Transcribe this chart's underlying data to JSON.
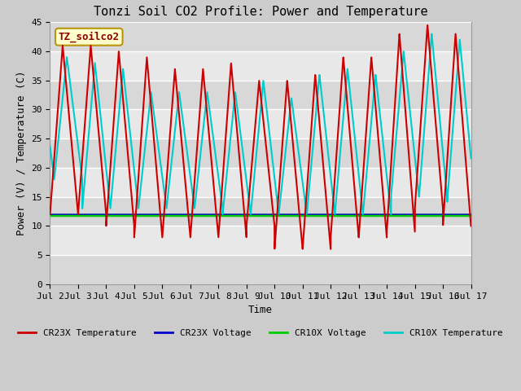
{
  "title": "Tonzi Soil CO2 Profile: Power and Temperature",
  "xlabel": "Time",
  "ylabel": "Power (V) / Temperature (C)",
  "xlim": [
    0,
    15
  ],
  "ylim": [
    0,
    45
  ],
  "yticks": [
    0,
    5,
    10,
    15,
    20,
    25,
    30,
    35,
    40,
    45
  ],
  "xtick_labels": [
    "Jul 2",
    "Jul 3",
    "Jul 4",
    "Jul 5",
    "Jul 6",
    "Jul 7",
    "Jul 8",
    "Jul 9",
    "Jul 10",
    "Jul 11",
    "Jul 12",
    "Jul 13",
    "Jul 14",
    "Jul 15",
    "Jul 16",
    "Jul 17"
  ],
  "annotation_text": "TZ_soilco2",
  "annotation_box_color": "#ffffcc",
  "annotation_border_color": "#b8960c",
  "cr23x_temp_color": "#cc0000",
  "cr23x_volt_color": "#0000cc",
  "cr10x_volt_color": "#00cc00",
  "cr10x_temp_color": "#00cccc",
  "background_color": "#cccccc",
  "plot_bg_color_light": "#e8e8e8",
  "plot_bg_color_dark": "#d8d8d8",
  "grid_color": "#ffffff",
  "legend_labels": [
    "CR23X Temperature",
    "CR23X Voltage",
    "CR10X Voltage",
    "CR10X Temperature"
  ],
  "cr10x_volt_value": 11.8,
  "cr23x_volt_value": 12.0,
  "figsize": [
    6.4,
    4.8
  ],
  "dpi": 100
}
